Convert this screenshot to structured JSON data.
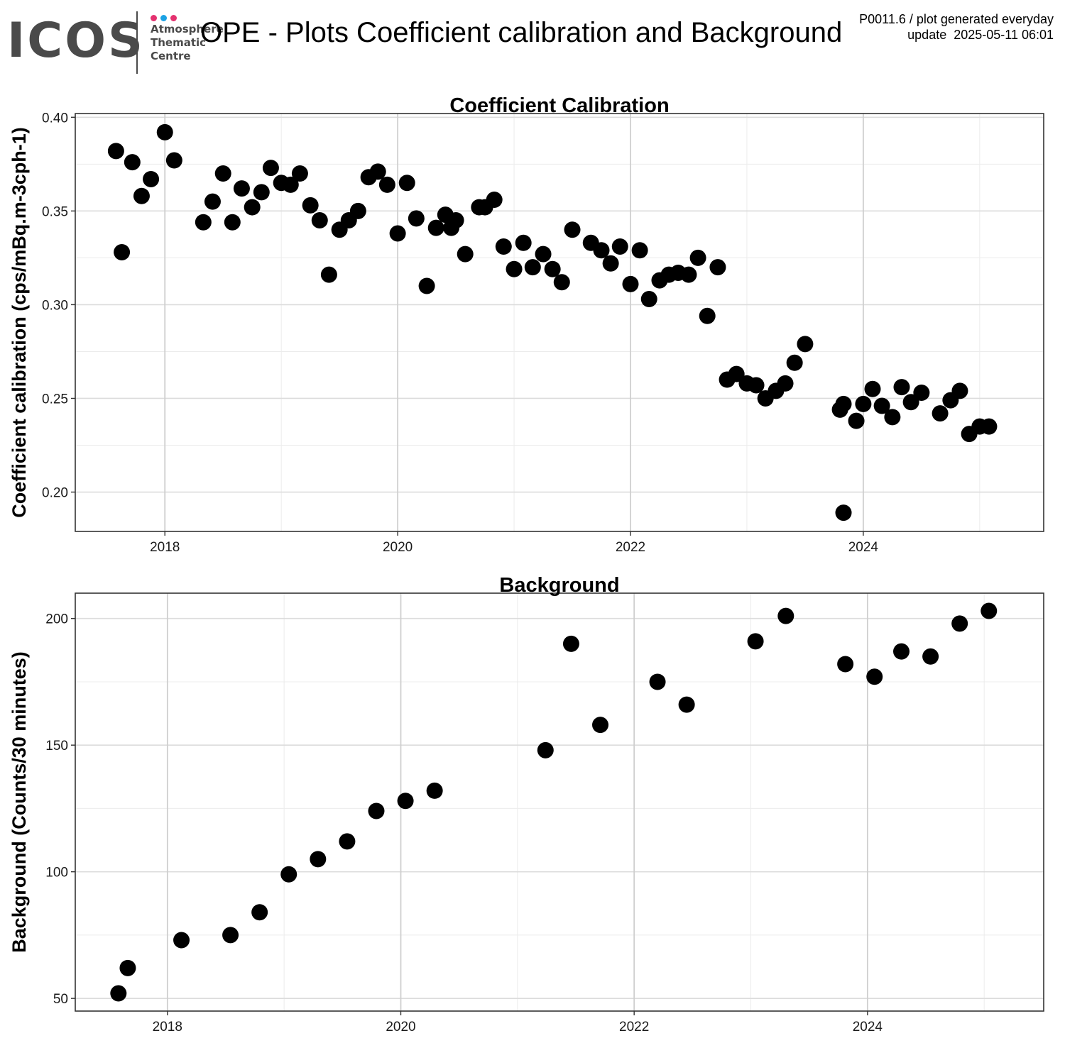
{
  "header": {
    "logo": {
      "wordmark": "ICOS",
      "lines": [
        "Atmosphere",
        "Thematic",
        "Centre"
      ],
      "dot_colors": [
        "#e4316f",
        "#1ba2e4",
        "#e4316f"
      ],
      "color": "#4a4a4a"
    },
    "title": "OPE - Plots Coefficient calibration and Background",
    "info_line1": "P0011.6 / plot generated everyday",
    "info_line2": "update  2025-05-11 06:01"
  },
  "chart_data": [
    {
      "type": "scatter",
      "title": "Coefficient Calibration",
      "xlabel": "",
      "ylabel": "Coefficient calibration (cps/mBq.m-3cph-1)",
      "xlim": [
        2017.23,
        2025.55
      ],
      "ylim": [
        0.179,
        0.402
      ],
      "x_ticks": [
        2018,
        2020,
        2022,
        2024
      ],
      "x_minor_ticks": [
        2019,
        2021,
        2023,
        2025
      ],
      "y_ticks": [
        0.2,
        0.25,
        0.3,
        0.35,
        0.4
      ],
      "y_tick_labels": [
        "0.20",
        "0.25",
        "0.30",
        "0.35",
        "0.40"
      ],
      "y_minor_ticks": [
        0.225,
        0.275,
        0.325,
        0.375
      ],
      "grid": true,
      "point_color": "#000000",
      "x": [
        2017.58,
        2017.63,
        2017.72,
        2017.8,
        2017.88,
        2018.0,
        2018.08,
        2018.33,
        2018.41,
        2018.5,
        2018.58,
        2018.66,
        2018.75,
        2018.83,
        2018.91,
        2019.0,
        2019.08,
        2019.16,
        2019.25,
        2019.33,
        2019.41,
        2019.5,
        2019.58,
        2019.66,
        2019.75,
        2019.83,
        2019.91,
        2020.0,
        2020.08,
        2020.16,
        2020.25,
        2020.33,
        2020.41,
        2020.46,
        2020.5,
        2020.58,
        2020.7,
        2020.75,
        2020.83,
        2020.91,
        2021.0,
        2021.08,
        2021.16,
        2021.25,
        2021.33,
        2021.41,
        2021.5,
        2021.66,
        2021.75,
        2021.83,
        2021.91,
        2022.0,
        2022.08,
        2022.16,
        2022.25,
        2022.33,
        2022.41,
        2022.5,
        2022.58,
        2022.66,
        2022.75,
        2022.83,
        2022.91,
        2023.0,
        2023.08,
        2023.16,
        2023.25,
        2023.33,
        2023.41,
        2023.5,
        2023.8,
        2023.83,
        2023.83,
        2023.94,
        2024.0,
        2024.08,
        2024.16,
        2024.25,
        2024.33,
        2024.41,
        2024.5,
        2024.66,
        2024.75,
        2024.83,
        2024.91,
        2025.0,
        2025.08
      ],
      "y": [
        0.382,
        0.328,
        0.376,
        0.358,
        0.367,
        0.392,
        0.377,
        0.344,
        0.355,
        0.37,
        0.344,
        0.362,
        0.352,
        0.36,
        0.373,
        0.365,
        0.364,
        0.37,
        0.353,
        0.345,
        0.316,
        0.34,
        0.345,
        0.35,
        0.368,
        0.371,
        0.364,
        0.338,
        0.365,
        0.346,
        0.31,
        0.341,
        0.348,
        0.341,
        0.345,
        0.327,
        0.352,
        0.352,
        0.356,
        0.331,
        0.319,
        0.333,
        0.32,
        0.327,
        0.319,
        0.312,
        0.34,
        0.333,
        0.329,
        0.322,
        0.331,
        0.311,
        0.329,
        0.303,
        0.313,
        0.316,
        0.317,
        0.316,
        0.325,
        0.294,
        0.32,
        0.26,
        0.263,
        0.258,
        0.257,
        0.25,
        0.254,
        0.258,
        0.269,
        0.279,
        0.244,
        0.247,
        0.189,
        0.238,
        0.247,
        0.255,
        0.246,
        0.24,
        0.256,
        0.248,
        0.253,
        0.242,
        0.249,
        0.254,
        0.231,
        0.235,
        0.235
      ]
    },
    {
      "type": "scatter",
      "title": "Background",
      "xlabel": "",
      "ylabel": "Background (Counts/30 minutes)",
      "xlim": [
        2017.21,
        2025.51
      ],
      "ylim": [
        45,
        210
      ],
      "x_ticks": [
        2018,
        2020,
        2022,
        2024
      ],
      "x_minor_ticks": [
        2019,
        2021,
        2023,
        2025
      ],
      "y_ticks": [
        50,
        100,
        150,
        200
      ],
      "y_tick_labels": [
        "50",
        "100",
        "150",
        "200"
      ],
      "y_minor_ticks": [
        75,
        125,
        175
      ],
      "grid": true,
      "point_color": "#000000",
      "x": [
        2017.58,
        2017.66,
        2018.12,
        2018.54,
        2018.79,
        2019.04,
        2019.29,
        2019.54,
        2019.79,
        2020.04,
        2020.29,
        2021.24,
        2021.46,
        2021.71,
        2022.2,
        2022.45,
        2023.04,
        2023.3,
        2023.81,
        2024.06,
        2024.29,
        2024.54,
        2024.79,
        2025.04
      ],
      "y": [
        52,
        62,
        73,
        75,
        84,
        99,
        105,
        112,
        124,
        128,
        132,
        148,
        190,
        158,
        175,
        166,
        191,
        201,
        182,
        177,
        187,
        185,
        198,
        203
      ]
    }
  ]
}
